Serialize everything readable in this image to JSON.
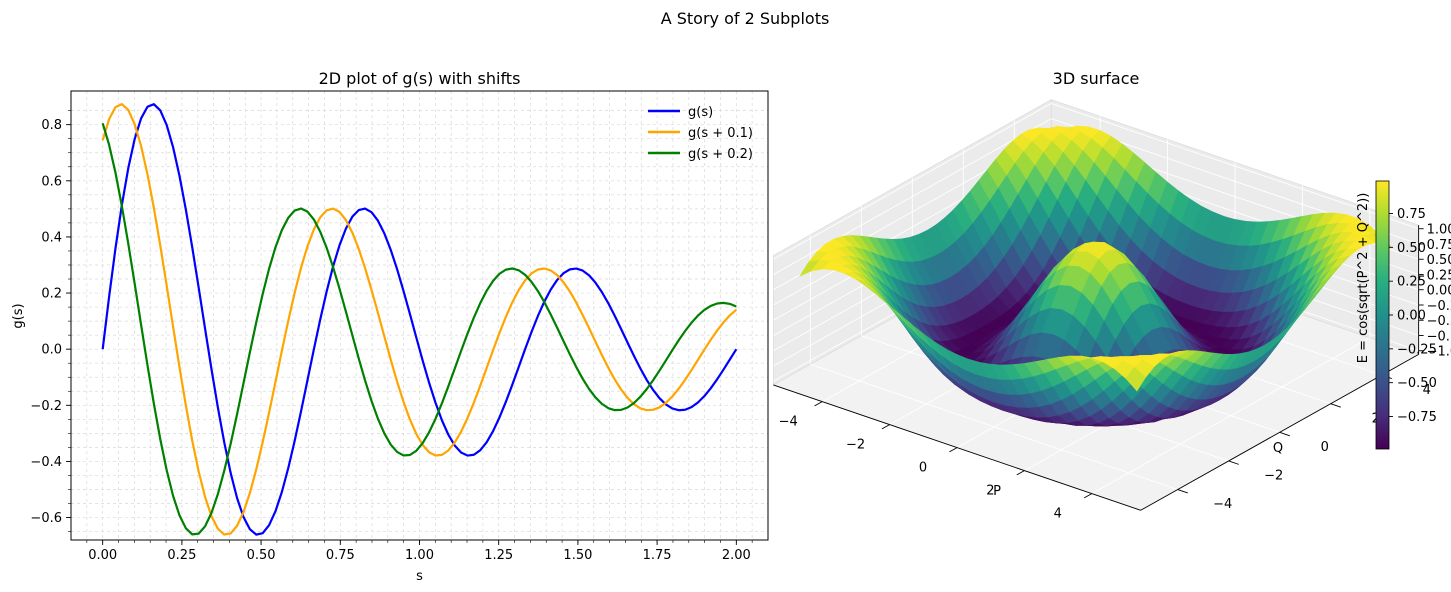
{
  "figure": {
    "suptitle": "A Story of 2 Subplots"
  },
  "chart_data": [
    {
      "type": "line",
      "title": "2D plot of g(s) with shifts",
      "xlabel": "s",
      "ylabel": "g(s)",
      "xlim": [
        -0.1,
        2.1
      ],
      "ylim": [
        -0.68,
        0.92
      ],
      "xticks": [
        "0.00",
        "0.25",
        "0.50",
        "0.75",
        "1.00",
        "1.25",
        "1.50",
        "1.75",
        "2.00"
      ],
      "yticks": [
        "−0.6",
        "−0.4",
        "−0.2",
        "0.0",
        "0.2",
        "0.4",
        "0.6",
        "0.8"
      ],
      "grid": true,
      "legend_position": "top-right",
      "function": "g(s) = exp(-s/1.2) * sin(pi * 3 * s), s in [0, 2]",
      "series": [
        {
          "name": "g(s)",
          "shift": 0.0,
          "color": "#0000ff"
        },
        {
          "name": "g(s + 0.1)",
          "shift": 0.1,
          "color": "#ffa500"
        },
        {
          "name": "g(s + 0.2)",
          "shift": 0.2,
          "color": "#008000"
        }
      ],
      "x_start": 0.0,
      "x_end": 2.0,
      "num_points": 100
    },
    {
      "type": "surface",
      "title": "3D surface",
      "xlabel": "P",
      "ylabel": "Q",
      "zlabel": "E = cos(sqrt(P^2 + Q^2))",
      "xticks": [
        "−4",
        "−2",
        "0",
        "2",
        "4"
      ],
      "yticks": [
        "−4",
        "−2",
        "0",
        "2",
        "4"
      ],
      "zticks": [
        "−1.00",
        "−0.75",
        "−0.50",
        "−0.25",
        "0.00",
        "0.25",
        "0.50",
        "0.75",
        "1.00"
      ],
      "colormap": "viridis",
      "colorbar_ticks": [
        "−0.75",
        "−0.50",
        "−0.25",
        "0.00",
        "0.25",
        "0.50",
        "0.75"
      ],
      "colorbar_range": [
        -0.99,
        0.99
      ],
      "range": [
        -5,
        5
      ]
    }
  ]
}
